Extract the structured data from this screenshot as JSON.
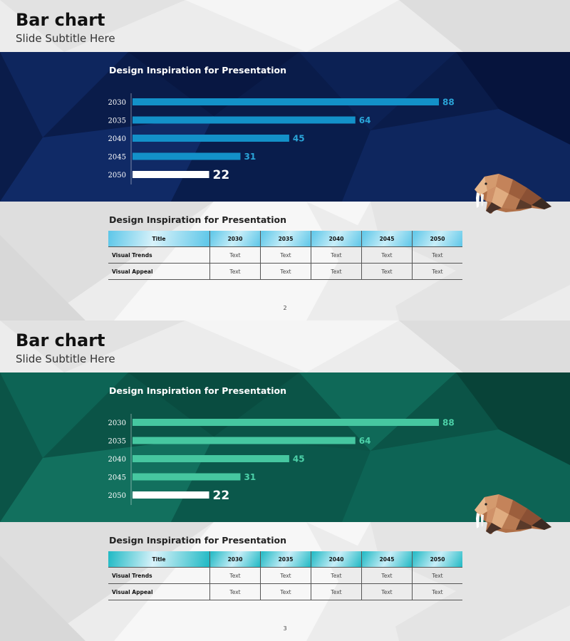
{
  "slides": [
    {
      "title": "Bar chart",
      "subtitle": "Slide Subtitle Here",
      "chart_title": "Design Inspiration for Presentation",
      "table_title": "Design Inspiration for Presentation",
      "page_number": "2",
      "colors": {
        "band": "#0a1c4a",
        "bar": "#1391c9",
        "label": "#2aa4d8",
        "highlight": "#ffffff",
        "header": "#5cc6e8"
      },
      "table": {
        "headers": [
          "Title",
          "2030",
          "2035",
          "2040",
          "2045",
          "2050"
        ],
        "rows": [
          [
            "Visual Trends",
            "Text",
            "Text",
            "Text",
            "Text",
            "Text"
          ],
          [
            "Visual Appeal",
            "Text",
            "Text",
            "Text",
            "Text",
            "Text"
          ]
        ]
      }
    },
    {
      "title": "Bar chart",
      "subtitle": "Slide Subtitle Here",
      "chart_title": "Design Inspiration for Presentation",
      "table_title": "Design Inspiration for Presentation",
      "page_number": "3",
      "colors": {
        "band": "#0b5447",
        "bar": "#46c7a0",
        "label": "#4cd1a8",
        "highlight": "#ffffff",
        "header": "#1fb9c4"
      },
      "table": {
        "headers": [
          "Title",
          "2030",
          "2035",
          "2040",
          "2045",
          "2050"
        ],
        "rows": [
          [
            "Visual Trends",
            "Text",
            "Text",
            "Text",
            "Text",
            "Text"
          ],
          [
            "Visual Appeal",
            "Text",
            "Text",
            "Text",
            "Text",
            "Text"
          ]
        ]
      }
    }
  ],
  "chart_data": [
    {
      "type": "bar",
      "orientation": "horizontal",
      "title": "Design Inspiration for Presentation",
      "categories": [
        "2030",
        "2035",
        "2040",
        "2045",
        "2050"
      ],
      "values": [
        88,
        64,
        45,
        31,
        22
      ],
      "xlim": [
        0,
        100
      ],
      "grid": false
    },
    {
      "type": "bar",
      "orientation": "horizontal",
      "title": "Design Inspiration for Presentation",
      "categories": [
        "2030",
        "2035",
        "2040",
        "2045",
        "2050"
      ],
      "values": [
        88,
        64,
        45,
        31,
        22
      ],
      "xlim": [
        0,
        100
      ],
      "grid": false
    }
  ]
}
